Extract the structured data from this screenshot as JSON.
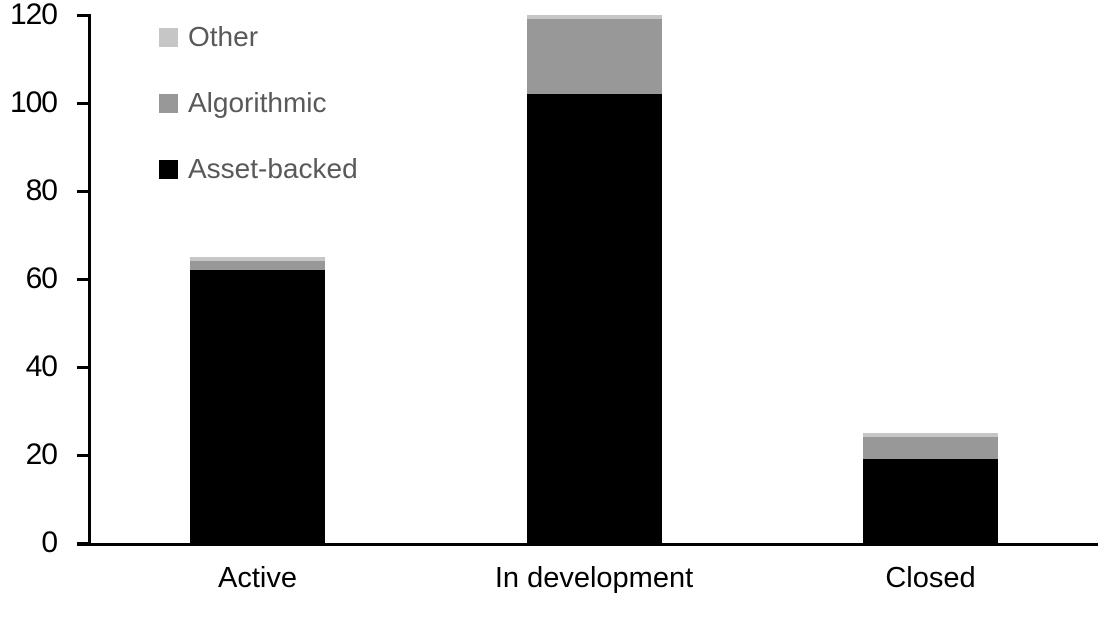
{
  "chart_data": {
    "type": "bar",
    "stacked": true,
    "title": "",
    "xlabel": "",
    "ylabel": "",
    "categories": [
      "Active",
      "In development",
      "Closed"
    ],
    "series": [
      {
        "name": "Asset-backed",
        "color": "#000000",
        "values": [
          62,
          102,
          19
        ]
      },
      {
        "name": "Algorithmic",
        "color": "#989898",
        "values": [
          2,
          17,
          5
        ]
      },
      {
        "name": "Other",
        "color": "#c6c6c6",
        "values": [
          1,
          1,
          1
        ]
      }
    ],
    "totals": [
      65,
      120,
      25
    ],
    "ylim": [
      0,
      120
    ],
    "yticks": [
      0,
      20,
      40,
      60,
      80,
      100,
      120
    ],
    "grid": false,
    "legend_position": "top-left",
    "legend_order": [
      "Other",
      "Algorithmic",
      "Asset-backed"
    ]
  },
  "colors": {
    "background": "#ffffff",
    "axis": "#000000",
    "tick_label_text": "#000000",
    "category_label_text": "#000000",
    "legend_text": "#595959"
  }
}
